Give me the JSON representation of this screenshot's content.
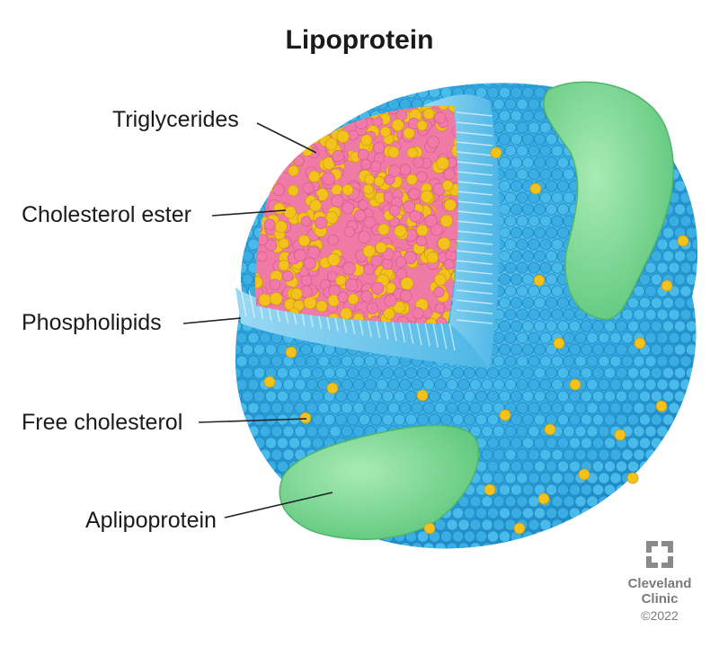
{
  "title": "Lipoprotein",
  "labels": {
    "triglycerides": "Triglycerides",
    "cholesterol_ester": "Cholesterol ester",
    "phospholipids": "Phospholipids",
    "free_cholesterol": "Free cholesterol",
    "apolipoprotein": "Aplipoprotein"
  },
  "logo": {
    "line1": "Cleveland",
    "line2": "Clinic",
    "copyright": "©2022"
  },
  "colors": {
    "shell_blue": "#3bb3e6",
    "shell_dark": "#1e8fc8",
    "core_pink": "#f27aa8",
    "core_yellow": "#f3c21d",
    "protein_green": "#7fd893",
    "logo_gray": "#8a8a8a"
  }
}
